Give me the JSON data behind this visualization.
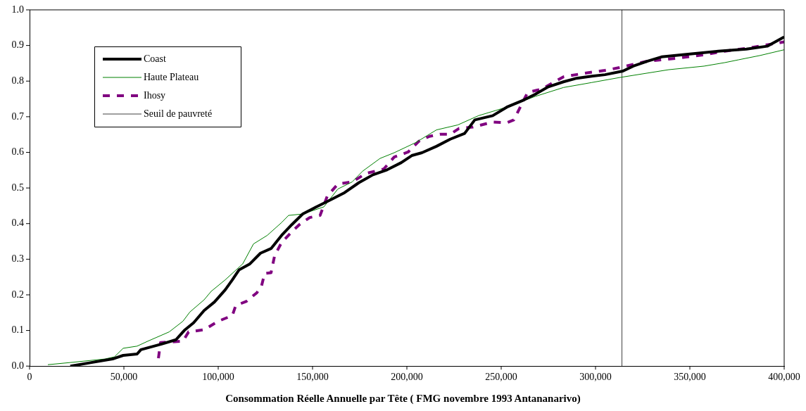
{
  "chart_data": {
    "type": "line",
    "xlabel": "Consommation Réelle Annuelle par Tête ( FMG novembre 1993 Antananarivo)",
    "xlim": [
      0,
      400000
    ],
    "xticks": [
      {
        "value": 0,
        "label": "0"
      },
      {
        "value": 50000,
        "label": "50,000"
      },
      {
        "value": 100000,
        "label": "100,000"
      },
      {
        "value": 150000,
        "label": "150,000"
      },
      {
        "value": 200000,
        "label": "200,000"
      },
      {
        "value": 250000,
        "label": "250,000"
      },
      {
        "value": 300000,
        "label": "300,000"
      },
      {
        "value": 350000,
        "label": "350,000"
      },
      {
        "value": 400000,
        "label": "400,000"
      }
    ],
    "ylim": [
      0,
      1
    ],
    "yticks": [
      {
        "value": 0,
        "label": "0.0"
      },
      {
        "value": 0.1,
        "label": "0.1"
      },
      {
        "value": 0.2,
        "label": "0.2"
      },
      {
        "value": 0.3,
        "label": "0.3"
      },
      {
        "value": 0.4,
        "label": "0.4"
      },
      {
        "value": 0.5,
        "label": "0.5"
      },
      {
        "value": 0.6,
        "label": "0.6"
      },
      {
        "value": 0.7,
        "label": "0.7"
      },
      {
        "value": 0.8,
        "label": "0.8"
      },
      {
        "value": 0.9,
        "label": "0.9"
      },
      {
        "value": 1,
        "label": "1.0"
      }
    ],
    "grid": false,
    "legend": "top left",
    "marker": "none",
    "series": [
      {
        "name": "Coast",
        "color": "#000000",
        "line_style": "solid",
        "x": [
          21600,
          32800,
          44000,
          49600,
          57000,
          59000,
          70000,
          77600,
          82000,
          87000,
          92500,
          98000,
          103700,
          107500,
          111000,
          116800,
          122400,
          128000,
          133600,
          139000,
          144800,
          152000,
          159700,
          167000,
          174600,
          182000,
          189500,
          197000,
          202600,
          208000,
          215700,
          223000,
          230600,
          236000,
          245500,
          253000,
          262000,
          268000,
          275000,
          283000,
          290000,
          298000,
          305000,
          314500,
          320000,
          327600,
          335000,
          350000,
          365000,
          380000,
          391000,
          400000
        ],
        "values": [
          0,
          0.01,
          0.02,
          0.03,
          0.034,
          0.046,
          0.062,
          0.074,
          0.1,
          0.122,
          0.156,
          0.18,
          0.214,
          0.242,
          0.27,
          0.287,
          0.317,
          0.33,
          0.367,
          0.397,
          0.427,
          0.447,
          0.467,
          0.487,
          0.515,
          0.537,
          0.551,
          0.571,
          0.591,
          0.599,
          0.617,
          0.637,
          0.653,
          0.691,
          0.703,
          0.727,
          0.747,
          0.763,
          0.784,
          0.798,
          0.808,
          0.814,
          0.818,
          0.828,
          0.842,
          0.856,
          0.868,
          0.876,
          0.884,
          0.89,
          0.898,
          0.924
        ]
      },
      {
        "name": "Haute Plateau",
        "color": "#008000",
        "line_style": "solid",
        "x": [
          9700,
          21600,
          40000,
          45000,
          49600,
          57000,
          62700,
          74000,
          81300,
          85000,
          92500,
          96300,
          103700,
          113000,
          118700,
          126000,
          133600,
          137300,
          144800,
          156000,
          163400,
          171000,
          176500,
          185800,
          193300,
          204500,
          215700,
          227000,
          238000,
          253000,
          268000,
          283000,
          298000,
          312700,
          338800,
          357500,
          368600,
          376000,
          387300,
          400000
        ],
        "values": [
          0.004,
          0.01,
          0.02,
          0.026,
          0.05,
          0.056,
          0.07,
          0.096,
          0.126,
          0.152,
          0.186,
          0.21,
          0.242,
          0.287,
          0.343,
          0.367,
          0.403,
          0.423,
          0.427,
          0.447,
          0.497,
          0.517,
          0.547,
          0.583,
          0.599,
          0.627,
          0.663,
          0.677,
          0.703,
          0.727,
          0.757,
          0.782,
          0.796,
          0.81,
          0.832,
          0.842,
          0.852,
          0.86,
          0.872,
          0.888
        ]
      },
      {
        "name": "Ihosy",
        "color": "#800080",
        "line_style": "dashed",
        "x": [
          68300,
          69400,
          81300,
          84300,
          92500,
          100000,
          107500,
          109300,
          115000,
          120500,
          123000,
          124600,
          128000,
          129900,
          133600,
          139000,
          143000,
          148500,
          154000,
          157800,
          163400,
          171000,
          178400,
          187700,
          193300,
          200700,
          206300,
          212000,
          217500,
          223000,
          227600,
          235000,
          245500,
          253000,
          256700,
          264000,
          271600,
          283000,
          294000,
          305000,
          312700,
          327600,
          342500,
          357500,
          368600,
          380000,
          400000
        ],
        "values": [
          0.022,
          0.066,
          0.07,
          0.096,
          0.102,
          0.126,
          0.142,
          0.17,
          0.182,
          0.206,
          0.226,
          0.26,
          0.262,
          0.31,
          0.347,
          0.377,
          0.397,
          0.417,
          0.423,
          0.477,
          0.511,
          0.517,
          0.541,
          0.553,
          0.587,
          0.601,
          0.631,
          0.645,
          0.651,
          0.651,
          0.667,
          0.671,
          0.685,
          0.683,
          0.691,
          0.768,
          0.778,
          0.812,
          0.822,
          0.83,
          0.838,
          0.856,
          0.864,
          0.874,
          0.884,
          0.892,
          0.91
        ]
      },
      {
        "name": "Seuil de pauvreté",
        "color": "#404040",
        "line_style": "solid",
        "x": [
          314000,
          314000
        ],
        "values": [
          0,
          1
        ]
      }
    ]
  }
}
